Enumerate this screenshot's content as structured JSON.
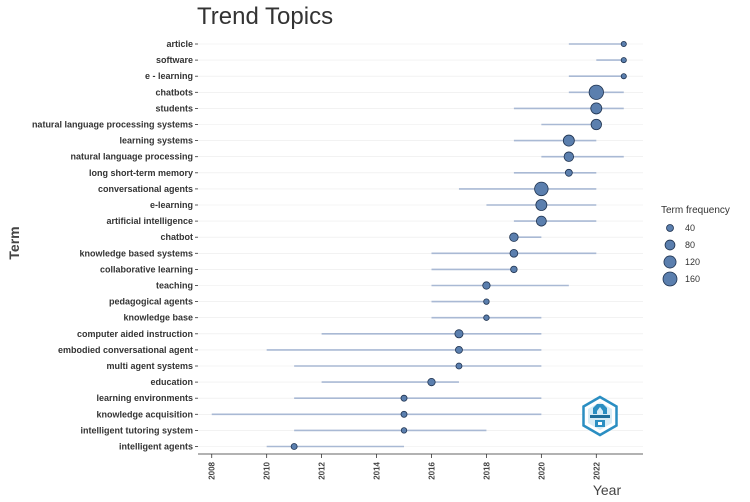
{
  "chart_data": {
    "type": "scatter",
    "title": "Trend Topics",
    "xlabel": "Year",
    "ylabel": "Term",
    "xlim": [
      2007.5,
      2023.7
    ],
    "xticks": [
      "2008",
      "2010",
      "2012",
      "2014",
      "2016",
      "2018",
      "2020",
      "2022"
    ],
    "legend": {
      "title": "Term frequency",
      "placement": "right",
      "sizes": [
        40,
        80,
        120,
        160
      ]
    },
    "point_color": "#5b7fae",
    "point_edge_color": "#1f3350",
    "line_color": "#a9b9d4",
    "terms": [
      {
        "term": "article",
        "start": 2021,
        "end": 2023,
        "peak": 2023,
        "freq": 8
      },
      {
        "term": "software",
        "start": 2022,
        "end": 2023,
        "peak": 2023,
        "freq": 6
      },
      {
        "term": "e - learning",
        "start": 2021,
        "end": 2023,
        "peak": 2023,
        "freq": 6
      },
      {
        "term": "chatbots",
        "start": 2021,
        "end": 2023,
        "peak": 2022,
        "freq": 170
      },
      {
        "term": "students",
        "start": 2019,
        "end": 2023,
        "peak": 2022,
        "freq": 100
      },
      {
        "term": "natural language processing systems",
        "start": 2020,
        "end": 2022,
        "peak": 2022,
        "freq": 90
      },
      {
        "term": "learning systems",
        "start": 2019,
        "end": 2022,
        "peak": 2021,
        "freq": 100
      },
      {
        "term": "natural language processing",
        "start": 2020,
        "end": 2023,
        "peak": 2021,
        "freq": 75
      },
      {
        "term": "long short-term memory",
        "start": 2019,
        "end": 2022,
        "peak": 2021,
        "freq": 40
      },
      {
        "term": "conversational agents",
        "start": 2017,
        "end": 2022,
        "peak": 2020,
        "freq": 150
      },
      {
        "term": "e-learning",
        "start": 2018,
        "end": 2022,
        "peak": 2020,
        "freq": 100
      },
      {
        "term": "artificial intelligence",
        "start": 2019,
        "end": 2022,
        "peak": 2020,
        "freq": 80
      },
      {
        "term": "chatbot",
        "start": 2019,
        "end": 2020,
        "peak": 2019,
        "freq": 60
      },
      {
        "term": "knowledge based systems",
        "start": 2016,
        "end": 2022,
        "peak": 2019,
        "freq": 50
      },
      {
        "term": "collaborative learning",
        "start": 2016,
        "end": 2019,
        "peak": 2019,
        "freq": 35
      },
      {
        "term": "teaching",
        "start": 2016,
        "end": 2021,
        "peak": 2018,
        "freq": 45
      },
      {
        "term": "pedagogical agents",
        "start": 2016,
        "end": 2018,
        "peak": 2018,
        "freq": 25
      },
      {
        "term": "knowledge base",
        "start": 2016,
        "end": 2020,
        "peak": 2018,
        "freq": 25
      },
      {
        "term": "computer aided instruction",
        "start": 2012,
        "end": 2020,
        "peak": 2017,
        "freq": 55
      },
      {
        "term": "embodied conversational agent",
        "start": 2010,
        "end": 2020,
        "peak": 2017,
        "freq": 40
      },
      {
        "term": "multi agent systems",
        "start": 2011,
        "end": 2020,
        "peak": 2017,
        "freq": 30
      },
      {
        "term": "education",
        "start": 2012,
        "end": 2017,
        "peak": 2016,
        "freq": 45
      },
      {
        "term": "learning environments",
        "start": 2011,
        "end": 2020,
        "peak": 2015,
        "freq": 30
      },
      {
        "term": "knowledge acquisition",
        "start": 2008,
        "end": 2020,
        "peak": 2015,
        "freq": 30
      },
      {
        "term": "intelligent tutoring system",
        "start": 2011,
        "end": 2018,
        "peak": 2015,
        "freq": 25
      },
      {
        "term": "intelligent agents",
        "start": 2010,
        "end": 2015,
        "peak": 2011,
        "freq": 30
      }
    ]
  }
}
